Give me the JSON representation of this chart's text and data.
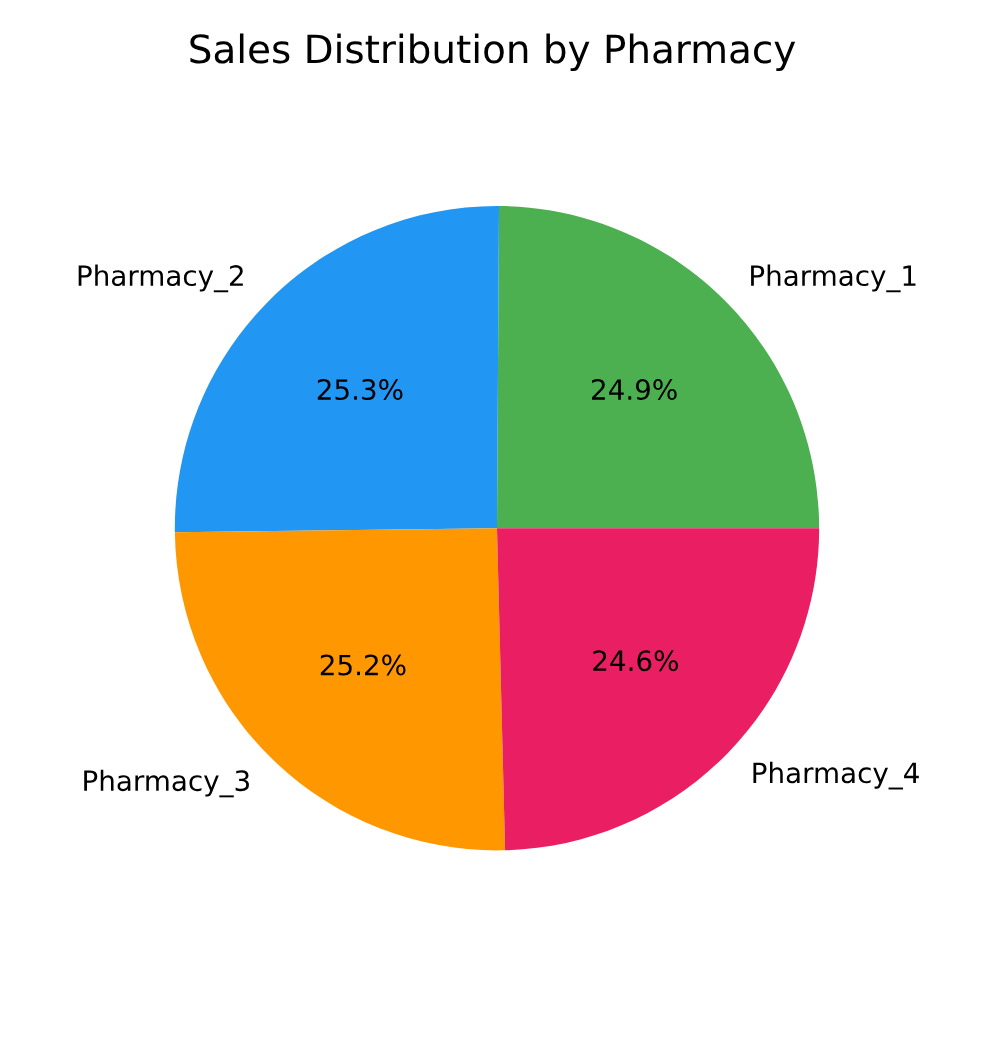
{
  "chart_data": {
    "type": "pie",
    "title": "Sales Distribution by Pharmacy",
    "categories": [
      "Pharmacy_1",
      "Pharmacy_2",
      "Pharmacy_3",
      "Pharmacy_4"
    ],
    "values": [
      24.9,
      25.3,
      25.2,
      24.6
    ],
    "colors": [
      "#4caf50",
      "#2196f3",
      "#ff9800",
      "#e91e63"
    ],
    "value_labels": [
      "24.9%",
      "25.3%",
      "25.2%",
      "24.6%"
    ]
  }
}
